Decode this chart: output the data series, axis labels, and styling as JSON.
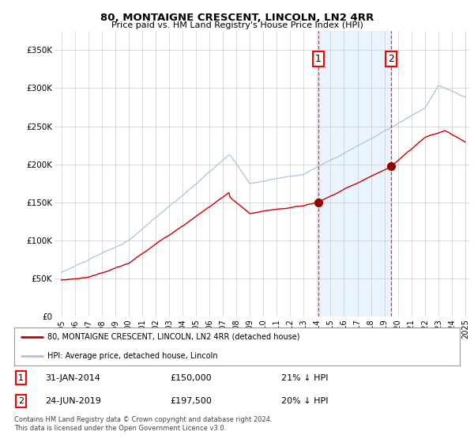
{
  "title": "80, MONTAIGNE CRESCENT, LINCOLN, LN2 4RR",
  "subtitle": "Price paid vs. HM Land Registry's House Price Index (HPI)",
  "legend_line1": "80, MONTAIGNE CRESCENT, LINCOLN, LN2 4RR (detached house)",
  "legend_line2": "HPI: Average price, detached house, Lincoln",
  "annotation1_label": "1",
  "annotation1_date": "31-JAN-2014",
  "annotation1_price": "£150,000",
  "annotation1_hpi": "21% ↓ HPI",
  "annotation2_label": "2",
  "annotation2_date": "24-JUN-2019",
  "annotation2_price": "£197,500",
  "annotation2_hpi": "20% ↓ HPI",
  "footnote": "Contains HM Land Registry data © Crown copyright and database right 2024.\nThis data is licensed under the Open Government Licence v3.0.",
  "year_start": 1995,
  "year_end": 2025,
  "ylim": [
    0,
    375000
  ],
  "yticks": [
    0,
    50000,
    100000,
    150000,
    200000,
    250000,
    300000,
    350000
  ],
  "ytick_labels": [
    "£0",
    "£50K",
    "£100K",
    "£150K",
    "£200K",
    "£250K",
    "£300K",
    "£350K"
  ],
  "hpi_color": "#aac4e0",
  "price_color": "#cc0000",
  "sale1_year": 2014.08,
  "sale1_price": 150000,
  "sale2_year": 2019.48,
  "sale2_price": 197500,
  "bg_color": "#ffffff",
  "grid_color": "#cccccc",
  "shade_color": "#ddeeff"
}
